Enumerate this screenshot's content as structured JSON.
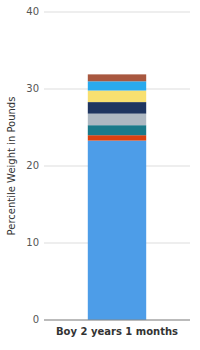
{
  "chart_data": {
    "type": "bar",
    "stacked": true,
    "categories": [
      "Boy 2 years 1 months"
    ],
    "series": [
      {
        "color": "#4d9de8",
        "values": [
          23.3
        ]
      },
      {
        "color": "#d94010",
        "values": [
          0.7
        ]
      },
      {
        "color": "#1a7a8a",
        "values": [
          1.3
        ]
      },
      {
        "color": "#adb8c2",
        "values": [
          1.5
        ]
      },
      {
        "color": "#1e3560",
        "values": [
          1.5
        ]
      },
      {
        "color": "#f8e070",
        "values": [
          1.5
        ]
      },
      {
        "color": "#29aaee",
        "values": [
          1.2
        ]
      },
      {
        "color": "#a85840",
        "values": [
          0.9
        ]
      }
    ],
    "y_label": "Percentile Weight in Pounds",
    "ylim": [
      0,
      40
    ],
    "yticks": [
      0,
      10,
      20,
      30,
      40
    ],
    "grid": true
  }
}
